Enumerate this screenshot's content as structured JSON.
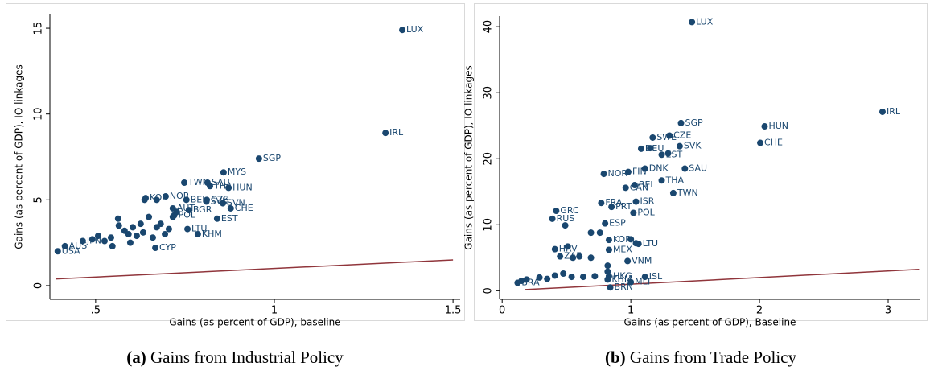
{
  "chart_data": [
    {
      "type": "scatter",
      "x_label": "Gains (as percent of GDP), baseline",
      "y_label": "Gains (as percent of GDP), IO linkages",
      "caption_label": "(a)",
      "caption": "Gains from Industrial Policy",
      "xlim": [
        0.372,
        1.52
      ],
      "ylim": [
        -0.8,
        15.8
      ],
      "xticks": [
        {
          "value": 0.5,
          "label": ".5"
        },
        1,
        1.5
      ],
      "yticks": [
        0,
        5,
        10,
        15
      ],
      "points": {
        "color": "#1a476f",
        "x": [
          1.358,
          1.311,
          0.957,
          0.858,
          0.748,
          0.813,
          0.872,
          0.82,
          0.696,
          0.64,
          0.811,
          0.856,
          0.754,
          0.716,
          0.761,
          0.878,
          0.81,
          0.72,
          0.84,
          0.757,
          0.786,
          0.667,
          0.394,
          0.414,
          0.464,
          0.507,
          0.525,
          0.543,
          0.563,
          0.565,
          0.581,
          0.592,
          0.604,
          0.615,
          0.626,
          0.633,
          0.649,
          0.66,
          0.671,
          0.682,
          0.694,
          0.705,
          0.716,
          0.637,
          0.671,
          0.727,
          0.597,
          0.547,
          0.491
        ],
        "y": [
          14.9,
          8.9,
          7.4,
          6.6,
          6.0,
          6.0,
          5.7,
          5.8,
          5.2,
          5.1,
          5.0,
          4.8,
          5.0,
          4.5,
          4.4,
          4.5,
          4.9,
          4.1,
          3.9,
          3.3,
          3.0,
          2.2,
          2.0,
          2.3,
          2.6,
          2.9,
          2.6,
          2.8,
          3.9,
          3.5,
          3.2,
          3.0,
          3.4,
          2.9,
          3.6,
          3.1,
          4.0,
          2.8,
          3.4,
          3.6,
          3.0,
          3.3,
          4.0,
          5.0,
          5.0,
          4.3,
          2.5,
          2.3,
          2.7
        ],
        "labels": [
          "LUX",
          "IRL",
          "SGP",
          "MYS",
          "TWN",
          "SAU",
          "HUN",
          "THA",
          "NOR",
          "KOR",
          "CZE",
          "SVN",
          "BEL",
          "AUT",
          "BGR",
          "CHE",
          "SVK",
          "POL",
          "EST",
          "LTU",
          "KHM",
          "CYP",
          "USA",
          "AUS",
          "JPN",
          null,
          null,
          null,
          null,
          null,
          null,
          null,
          null,
          null,
          null,
          null,
          null,
          null,
          null,
          null,
          null,
          null,
          null,
          null,
          null,
          null,
          null,
          null,
          null
        ]
      },
      "reference_line": {
        "color": "#90353b",
        "x": [
          0.39,
          1.5
        ],
        "y": [
          0.39,
          1.5
        ]
      }
    },
    {
      "type": "scatter",
      "x_label": "Gains (as percent of GDP), Baseline",
      "y_label": "Gains (as percent of GDP), IO linkages",
      "caption_label": "(b)",
      "caption": "Gains from Trade Policy",
      "xlim": [
        -0.02,
        3.25
      ],
      "ylim": [
        -1.3,
        41.6
      ],
      "xticks": [
        0,
        1,
        2,
        3
      ],
      "yticks": [
        0,
        10,
        20,
        30,
        40
      ],
      "points": {
        "color": "#1a476f",
        "x": [
          1.475,
          2.956,
          2.04,
          2.006,
          1.39,
          1.3,
          1.38,
          1.17,
          1.08,
          1.24,
          1.11,
          1.42,
          0.98,
          0.79,
          1.24,
          1.03,
          0.96,
          1.33,
          1.04,
          0.77,
          0.85,
          0.42,
          1.02,
          0.39,
          0.8,
          0.83,
          1.06,
          0.41,
          0.83,
          0.45,
          0.975,
          0.83,
          1.11,
          0.82,
          1.0,
          0.84,
          0.12,
          1.15,
          1.29,
          1.0,
          1.04,
          0.69,
          0.76,
          0.49,
          0.51,
          0.55,
          0.6,
          0.69,
          0.82,
          0.475,
          0.41,
          0.29,
          0.19,
          0.15,
          0.35,
          0.54,
          0.63,
          0.72,
          0.82
        ],
        "y": [
          40.7,
          27.1,
          24.9,
          22.4,
          25.4,
          23.5,
          21.9,
          23.2,
          21.5,
          20.6,
          18.5,
          18.5,
          18.0,
          17.7,
          16.7,
          16.0,
          15.6,
          14.8,
          13.5,
          13.3,
          12.7,
          12.1,
          11.8,
          10.9,
          10.2,
          7.7,
          7.1,
          6.3,
          6.2,
          5.2,
          4.5,
          2.2,
          2.1,
          1.7,
          1.3,
          0.5,
          1.2,
          21.6,
          20.8,
          7.8,
          7.2,
          8.8,
          8.8,
          9.9,
          6.7,
          5.0,
          5.2,
          5.0,
          3.8,
          2.6,
          2.3,
          2.0,
          1.7,
          1.5,
          1.8,
          2.1,
          2.1,
          2.2,
          2.9
        ],
        "labels": [
          "LUX",
          "IRL",
          "HUN",
          "CHE",
          "SGP",
          "CZE",
          "SVK",
          "SWE",
          "DEU",
          "EST",
          "DNK",
          "SAU",
          "FIN",
          "NOR",
          "THA",
          "BEL",
          "CAN",
          "TWN",
          "ISR",
          "FRA",
          "PRT",
          "GRC",
          "POL",
          "RUS",
          "ESP",
          "KOR",
          "LTU",
          "HRV",
          "MEX",
          "ZAF",
          "VNM",
          "HKG",
          "ISL",
          "KHM",
          "MLT",
          "BRN",
          "BRA",
          null,
          null,
          null,
          null,
          null,
          null,
          null,
          null,
          null,
          null,
          null,
          null,
          null,
          null,
          null,
          null,
          null,
          null,
          null,
          null,
          null,
          null
        ]
      },
      "reference_line": {
        "color": "#90353b",
        "x": [
          0.18,
          3.24
        ],
        "y": [
          0.18,
          3.24
        ]
      }
    }
  ]
}
